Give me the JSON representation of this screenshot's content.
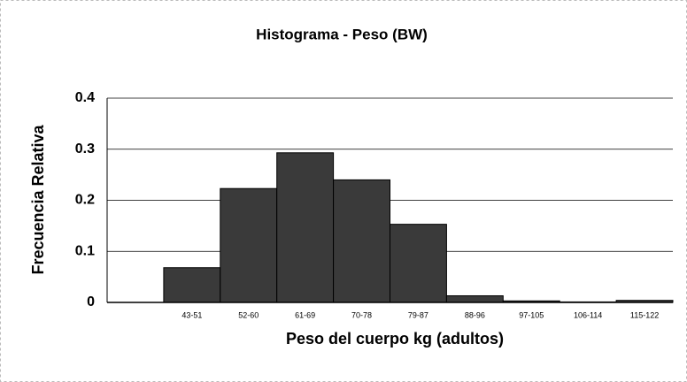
{
  "chart_data": {
    "type": "bar",
    "title": "Histograma - Peso (BW)",
    "x_label": "Peso del cuerpo kg (adultos)",
    "y_label": "Frecuencia Relativa",
    "categories": [
      null,
      "43-51",
      "52-60",
      "61-69",
      "70-78",
      "79-87",
      "88-96",
      "97-105",
      "106-114",
      "115-122"
    ],
    "values": [
      null,
      0.068,
      0.223,
      0.293,
      0.24,
      0.153,
      0.013,
      0.003,
      0.001,
      0.004
    ],
    "color": "#3a3a3a",
    "ylim": [
      0,
      0.4
    ],
    "yticks": [
      0,
      0.1,
      0.2,
      0.3,
      0.4
    ],
    "grid": true
  }
}
